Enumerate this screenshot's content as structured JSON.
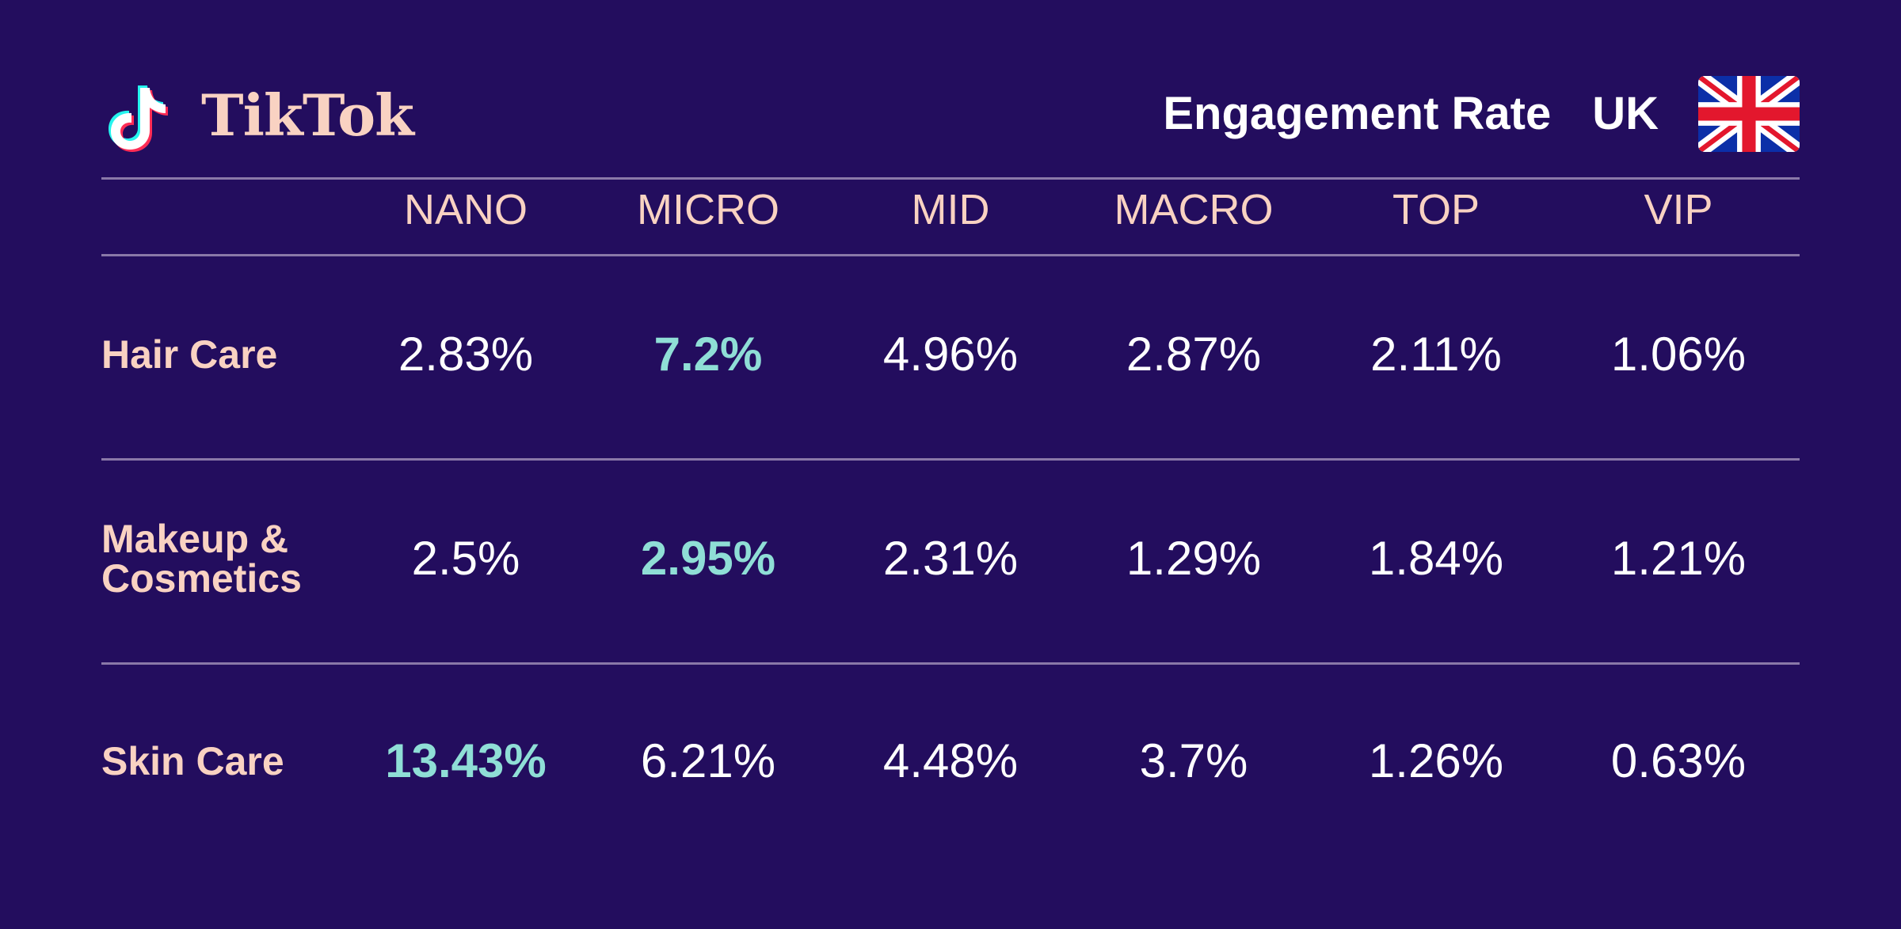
{
  "brand": {
    "name": "TikTok",
    "icon": "tiktok-note-icon"
  },
  "header": {
    "title": "Engagement Rate",
    "country": "UK",
    "flag_icon": "uk-flag-icon"
  },
  "colors": {
    "background": "#230d5e",
    "label": "#f9d2c2",
    "value": "#ffffff",
    "highlight": "#8fded6",
    "rule": "#8a78a8"
  },
  "chart_data": {
    "type": "table",
    "title": "Engagement Rate",
    "columns": [
      "NANO",
      "MICRO",
      "MID",
      "MACRO",
      "TOP",
      "VIP"
    ],
    "rows": [
      {
        "label": "Hair Care",
        "values": [
          "2.83%",
          "7.2%",
          "4.96%",
          "2.87%",
          "2.11%",
          "1.06%"
        ],
        "highlight_index": 1
      },
      {
        "label": "Makeup & Cosmetics",
        "label_lines": [
          "Makeup &",
          "Cosmetics"
        ],
        "values": [
          "2.5%",
          "2.95%",
          "2.31%",
          "1.29%",
          "1.84%",
          "1.21%"
        ],
        "highlight_index": 1
      },
      {
        "label": "Skin Care",
        "values": [
          "13.43%",
          "6.21%",
          "4.48%",
          "3.7%",
          "1.26%",
          "0.63%"
        ],
        "highlight_index": 0
      }
    ]
  }
}
